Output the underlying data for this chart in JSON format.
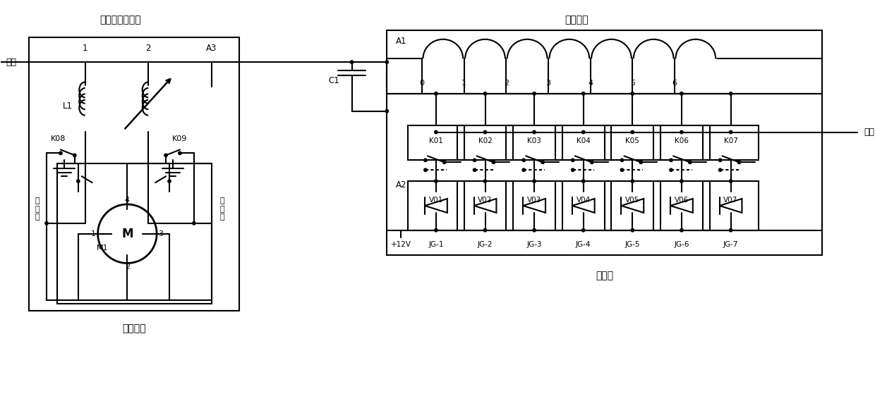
{
  "bg_color": "#ffffff",
  "title_left": "球形可变电感器",
  "title_right": "加感线圈",
  "label_input": "输入",
  "label_output": "输出",
  "label_motor": "步进电机",
  "label_relay": "继电器",
  "label_L1": "L1",
  "label_K08": "K08",
  "label_K09": "K09",
  "label_A1": "A1",
  "label_A2": "A2",
  "label_C1": "C1",
  "label_M": "M",
  "label_M1": "M1",
  "left_limit": "左\n限\n位",
  "right_limit": "右\n限\n位",
  "coil_taps": [
    "0",
    "1",
    "2",
    "3",
    "4",
    "5",
    "6"
  ],
  "K_switches": [
    "K01",
    "K02",
    "K03",
    "K04",
    "K05",
    "K06",
    "K07"
  ],
  "V_diodes": [
    "V01",
    "V02",
    "V03",
    "V04",
    "V05",
    "V06",
    "V07"
  ],
  "JG_labels": [
    "+12V",
    "JG-1",
    "JG-2",
    "JG-3",
    "JG-4",
    "JG-5",
    "JG-6",
    "JG-7"
  ],
  "lw": 1.5,
  "node_r": 0.22
}
